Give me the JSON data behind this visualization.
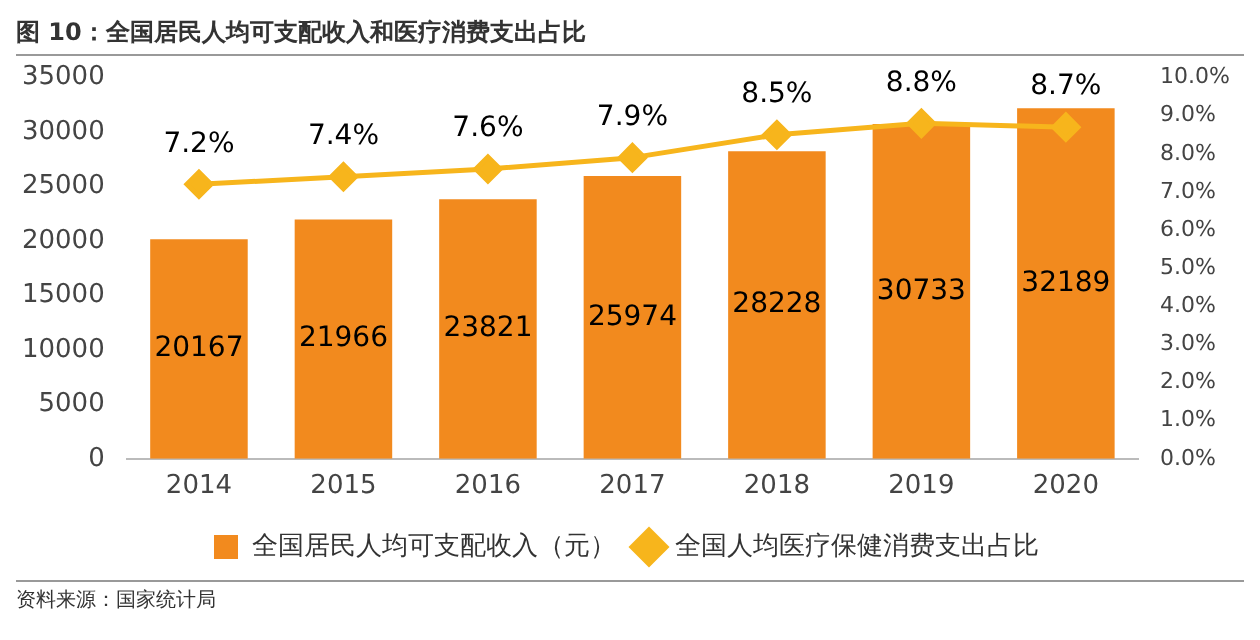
{
  "chart_data": {
    "type": "bar",
    "title": "图 10：全国居民人均可支配收入和医疗消费支出占比",
    "categories": [
      "2014",
      "2015",
      "2016",
      "2017",
      "2018",
      "2019",
      "2020"
    ],
    "series": [
      {
        "name": "全国居民人均可支配收入（元）",
        "type": "bar",
        "color": "#f28a1e",
        "values": [
          20167,
          21966,
          23821,
          25974,
          28228,
          30733,
          32189
        ],
        "value_labels": [
          "20167",
          "21966",
          "23821",
          "25974",
          "28228",
          "30733",
          "32189"
        ]
      },
      {
        "name": "全国人均医疗保健消费支出占比",
        "type": "line",
        "axis": "y2",
        "color": "#f7b51c",
        "marker": "diamond",
        "values": [
          7.2,
          7.4,
          7.6,
          7.9,
          8.5,
          8.8,
          8.7
        ],
        "value_labels": [
          "7.2%",
          "7.4%",
          "7.6%",
          "7.9%",
          "8.5%",
          "8.8%",
          "8.7%"
        ]
      }
    ],
    "ylim": [
      0,
      35000
    ],
    "yticks": [
      0,
      5000,
      10000,
      15000,
      20000,
      25000,
      30000,
      35000
    ],
    "y2lim": [
      0,
      10
    ],
    "y2ticks": [
      {
        "value": 0,
        "label": "0.0%"
      },
      {
        "value": 1,
        "label": "1.0%"
      },
      {
        "value": 2,
        "label": "2.0%"
      },
      {
        "value": 3,
        "label": "3.0%"
      },
      {
        "value": 4,
        "label": "4.0%"
      },
      {
        "value": 5,
        "label": "5.0%"
      },
      {
        "value": 6,
        "label": "6.0%"
      },
      {
        "value": 7,
        "label": "7.0%"
      },
      {
        "value": 8,
        "label": "8.0%"
      },
      {
        "value": 9,
        "label": "9.0%"
      },
      {
        "value": 10,
        "label": "10.0%"
      }
    ],
    "legend": "bottom",
    "annotations": [
      "资料来源：国家统计局"
    ]
  }
}
